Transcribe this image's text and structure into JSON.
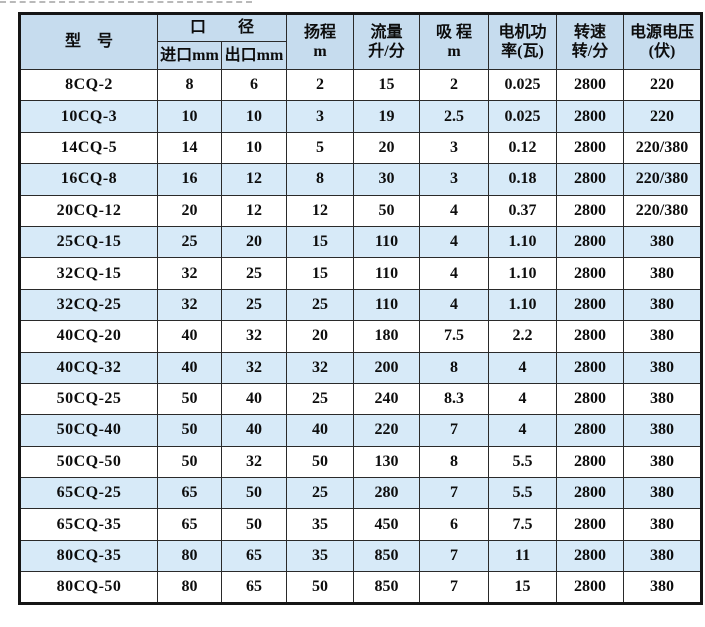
{
  "page": {
    "background": "#ffffff",
    "artifact": "cropped-text-remnant-line"
  },
  "colors": {
    "header_bg": "#c6dcee",
    "stripe_bg": "#d7eaf8",
    "border": "#151515",
    "inner_border": "#2a2a2a",
    "text": "#0d0d0d"
  },
  "table": {
    "header": {
      "model": "型　号",
      "caliber_group": "口　　径",
      "inlet": "进口mm",
      "outlet": "出口mm",
      "head_line1": "扬程",
      "head_line2": "m",
      "flow_line1": "流量",
      "flow_line2": "升/分",
      "suction_line1": "吸 程",
      "suction_line2": "m",
      "power_line1": "电机功",
      "power_line2": "率(瓦)",
      "speed_line1": "转速",
      "speed_line2": "转/分",
      "voltage_line1": "电源电压",
      "voltage_line2": "(伏)"
    },
    "columns": [
      "model",
      "inlet",
      "outlet",
      "head",
      "flow",
      "suction",
      "power",
      "speed",
      "voltage"
    ],
    "rows": [
      {
        "model": "8CQ-2",
        "inlet": "8",
        "outlet": "6",
        "head": "2",
        "flow": "15",
        "suction": "2",
        "power": "0.025",
        "speed": "2800",
        "voltage": "220"
      },
      {
        "model": "10CQ-3",
        "inlet": "10",
        "outlet": "10",
        "head": "3",
        "flow": "19",
        "suction": "2.5",
        "power": "0.025",
        "speed": "2800",
        "voltage": "220"
      },
      {
        "model": "14CQ-5",
        "inlet": "14",
        "outlet": "10",
        "head": "5",
        "flow": "20",
        "suction": "3",
        "power": "0.12",
        "speed": "2800",
        "voltage": "220/380"
      },
      {
        "model": "16CQ-8",
        "inlet": "16",
        "outlet": "12",
        "head": "8",
        "flow": "30",
        "suction": "3",
        "power": "0.18",
        "speed": "2800",
        "voltage": "220/380"
      },
      {
        "model": "20CQ-12",
        "inlet": "20",
        "outlet": "12",
        "head": "12",
        "flow": "50",
        "suction": "4",
        "power": "0.37",
        "speed": "2800",
        "voltage": "220/380"
      },
      {
        "model": "25CQ-15",
        "inlet": "25",
        "outlet": "20",
        "head": "15",
        "flow": "110",
        "suction": "4",
        "power": "1.10",
        "speed": "2800",
        "voltage": "380"
      },
      {
        "model": "32CQ-15",
        "inlet": "32",
        "outlet": "25",
        "head": "15",
        "flow": "110",
        "suction": "4",
        "power": "1.10",
        "speed": "2800",
        "voltage": "380"
      },
      {
        "model": "32CQ-25",
        "inlet": "32",
        "outlet": "25",
        "head": "25",
        "flow": "110",
        "suction": "4",
        "power": "1.10",
        "speed": "2800",
        "voltage": "380"
      },
      {
        "model": "40CQ-20",
        "inlet": "40",
        "outlet": "32",
        "head": "20",
        "flow": "180",
        "suction": "7.5",
        "power": "2.2",
        "speed": "2800",
        "voltage": "380"
      },
      {
        "model": "40CQ-32",
        "inlet": "40",
        "outlet": "32",
        "head": "32",
        "flow": "200",
        "suction": "8",
        "power": "4",
        "speed": "2800",
        "voltage": "380"
      },
      {
        "model": "50CQ-25",
        "inlet": "50",
        "outlet": "40",
        "head": "25",
        "flow": "240",
        "suction": "8.3",
        "power": "4",
        "speed": "2800",
        "voltage": "380"
      },
      {
        "model": "50CQ-40",
        "inlet": "50",
        "outlet": "40",
        "head": "40",
        "flow": "220",
        "suction": "7",
        "power": "4",
        "speed": "2800",
        "voltage": "380"
      },
      {
        "model": "50CQ-50",
        "inlet": "50",
        "outlet": "32",
        "head": "50",
        "flow": "130",
        "suction": "8",
        "power": "5.5",
        "speed": "2800",
        "voltage": "380"
      },
      {
        "model": "65CQ-25",
        "inlet": "65",
        "outlet": "50",
        "head": "25",
        "flow": "280",
        "suction": "7",
        "power": "5.5",
        "speed": "2800",
        "voltage": "380"
      },
      {
        "model": "65CQ-35",
        "inlet": "65",
        "outlet": "50",
        "head": "35",
        "flow": "450",
        "suction": "6",
        "power": "7.5",
        "speed": "2800",
        "voltage": "380"
      },
      {
        "model": "80CQ-35",
        "inlet": "80",
        "outlet": "65",
        "head": "35",
        "flow": "850",
        "suction": "7",
        "power": "11",
        "speed": "2800",
        "voltage": "380"
      },
      {
        "model": "80CQ-50",
        "inlet": "80",
        "outlet": "65",
        "head": "50",
        "flow": "850",
        "suction": "7",
        "power": "15",
        "speed": "2800",
        "voltage": "380"
      }
    ]
  }
}
